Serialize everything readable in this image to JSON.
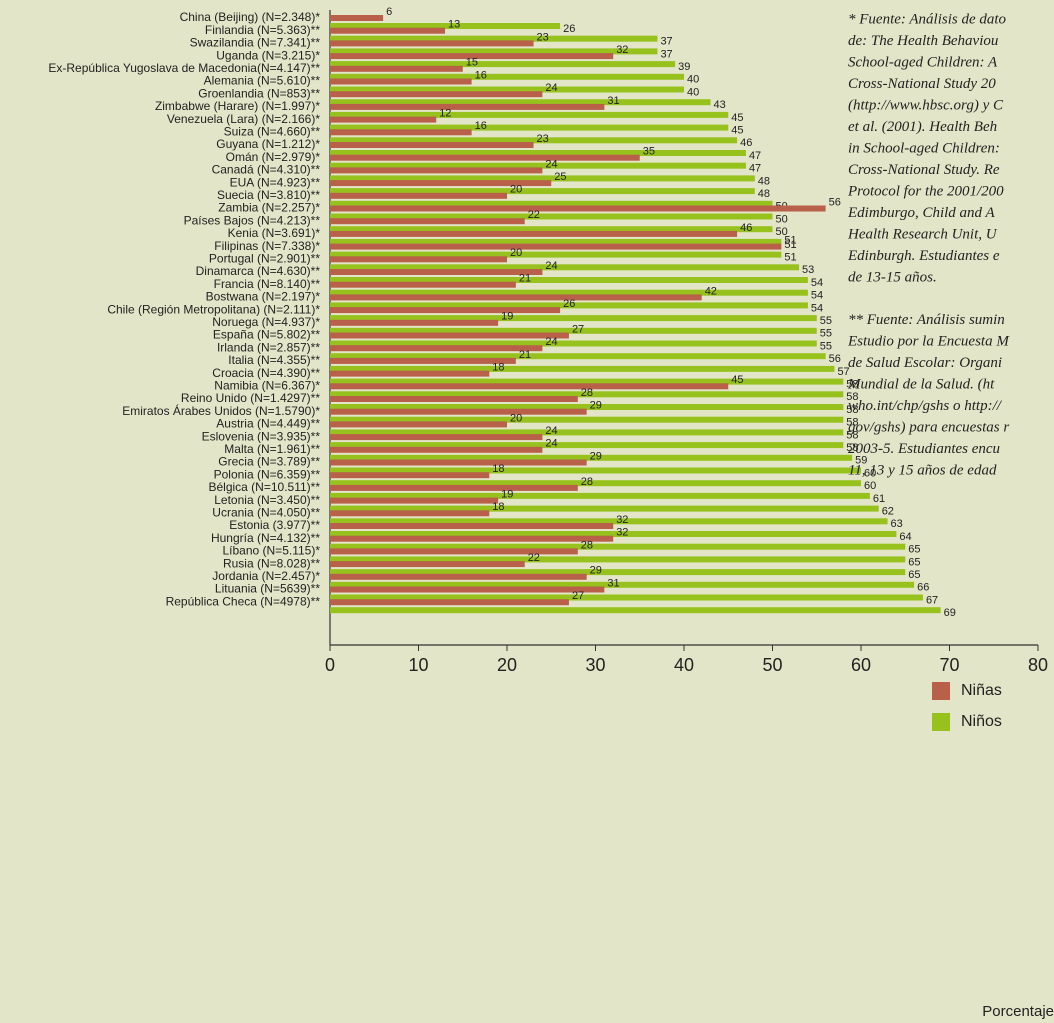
{
  "chart_data": {
    "type": "bar",
    "orientation": "horizontal",
    "categories": [
      "China (Beijing) (N=2.348)*",
      "Finlandia (N=5.363)**",
      "Swazilandia (N=7.341)**",
      "Uganda (N=3.215)*",
      "Ex-República Yugoslava de Macedonia(N=4.147)**",
      "Alemania (N=5.610)**",
      "Groenlandia (N=853)**",
      "Zimbabwe (Harare) (N=1.997)*",
      "Venezuela (Lara) (N=2.166)*",
      "Suiza (N=4.660)**",
      "Guyana (N=1.212)*",
      "Omán (N=2.979)*",
      "Canadá (N=4.310)**",
      "EUA (N=4.923)**",
      "Suecia (N=3.810)**",
      "Zambia (N=2.257)*",
      "Países Bajos (N=4.213)**",
      "Kenia (N=3.691)*",
      "Filipinas (N=7.338)*",
      "Portugal (N=2.901)**",
      "Dinamarca (N=4.630)**",
      "Francia (N=8.140)**",
      "Bostwana (N=2.197)*",
      "Chile (Región Metropolitana) (N=2.111)*",
      "Noruega (N=4.937)*",
      "España (N=5.802)**",
      "Irlanda (N=2.857)**",
      "Italia (N=4.355)**",
      "Croacia (N=4.390)**",
      "Namibia (N=6.367)*",
      "Reino Unido (N=1.4297)**",
      "Emiratos Árabes Unidos (N=1.5790)*",
      "Austria (N=4.449)**",
      "Eslovenia (N=3.935)**",
      "Malta (N=1.961)**",
      "Grecia (N=3.789)**",
      "Polonia (N=6.359)**",
      "Bélgica (N=10.511)**",
      "Letonia (N=3.450)**",
      "Ucrania (N=4.050)**",
      "Estonia (3.977)**",
      "Hungría (N=4.132)**",
      "Líbano (N=5.115)*",
      "Rusia (N=8.028)**",
      "Jordania (N=2.457)*",
      "Lituania (N=5639)**",
      "República Checa (N=4978)**"
    ],
    "series": [
      {
        "name": "Niñas",
        "color": "#b8604a",
        "values": [
          6,
          13,
          23,
          32,
          15,
          16,
          24,
          31,
          12,
          16,
          23,
          35,
          24,
          25,
          20,
          56,
          22,
          46,
          51,
          20,
          24,
          21,
          42,
          26,
          19,
          27,
          24,
          21,
          18,
          45,
          28,
          29,
          20,
          24,
          24,
          29,
          18,
          28,
          19,
          18,
          32,
          32,
          28,
          22,
          29,
          31,
          27
        ]
      },
      {
        "name": "Niños",
        "color": "#97c21e",
        "values": [
          26,
          37,
          37,
          39,
          40,
          40,
          43,
          45,
          45,
          46,
          47,
          47,
          48,
          48,
          50,
          50,
          50,
          51,
          51,
          53,
          54,
          54,
          54,
          55,
          55,
          55,
          56,
          57,
          58,
          58,
          58,
          58,
          58,
          58,
          59,
          60,
          60,
          61,
          62,
          63,
          64,
          65,
          65,
          65,
          66,
          67,
          69
        ]
      }
    ],
    "xlim": [
      0,
      80
    ],
    "xticks": [
      0,
      10,
      20,
      30,
      40,
      50,
      60,
      70,
      80
    ],
    "xlabel": "Porcentaje",
    "notes": [
      [
        "* Fuente: Análisis de dato",
        "de: The Health Behaviou",
        "School-aged Children: A",
        "Cross-National Study 20",
        "(http://www.hbsc.org) y C",
        "et al. (2001). Health Beh",
        "in School-aged Children:",
        "Cross-National Study. Re",
        "Protocol for the 2001/200",
        "Edimburgo, Child and A",
        "Health Research Unit, U",
        "Edinburgh. Estudiantes e",
        "de 13-15 años."
      ],
      [
        "** Fuente: Análisis sumin",
        "Estudio por la Encuesta M",
        "de Salud Escolar: Organi",
        "Mundial de la Salud. (ht",
        "who.int/chp/gshs o http://",
        "gov/gshs) para encuestas r",
        "2003-5. Estudiantes encu",
        "11, 13 y 15 años de edad"
      ]
    ]
  }
}
